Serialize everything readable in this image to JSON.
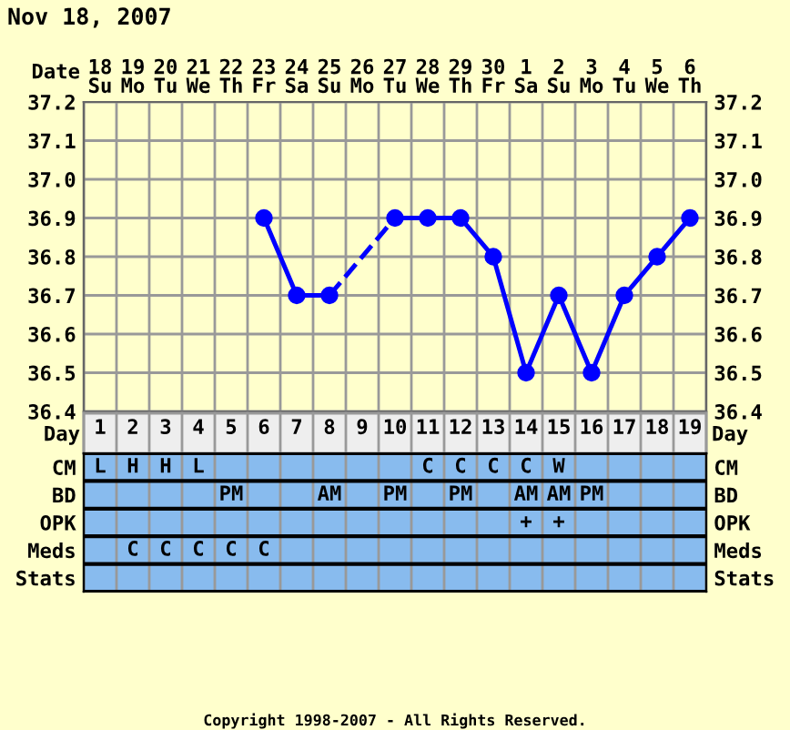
{
  "chart_data": [
    {
      "type": "line",
      "title": "Nov 18, 2007",
      "xlabel": "Date",
      "categories": [
        "18\nSu",
        "19\nMo",
        "20\nTu",
        "21\nWe",
        "22\nTh",
        "23\nFr",
        "24\nSa",
        "25\nSu",
        "26\nMo",
        "27\nTu",
        "28\nWe",
        "29\nTh",
        "30\nFr",
        "1\nSa",
        "2\nSu",
        "3\nMo",
        "4\nTu",
        "5\nWe",
        "6\nTh"
      ],
      "series": [
        {
          "color": "#0000ff",
          "values": [
            null,
            null,
            null,
            null,
            null,
            36.9,
            36.7,
            36.7,
            null,
            36.9,
            36.9,
            36.9,
            36.8,
            36.5,
            36.7,
            36.5,
            36.7,
            36.8,
            36.9
          ]
        }
      ],
      "ylim": [
        36.4,
        37.2
      ],
      "yticks": [
        36.4,
        36.5,
        36.6,
        36.7,
        36.8,
        36.9,
        {
          "value": 37,
          "label": "37.0"
        },
        37.1,
        37.2
      ],
      "y2lim": [
        36.4,
        37.2
      ],
      "y2ticks": [
        36.4,
        36.5,
        36.6,
        36.7,
        36.8,
        36.9,
        {
          "value": 37,
          "label": "37.0"
        },
        37.1,
        37.2
      ],
      "grid": true,
      "marker": "circle",
      "line_style": "solid",
      "legend": false
    },
    {
      "type": "heatmap",
      "xlabel": "Day",
      "categories": [
        "1",
        "2",
        "3",
        "4",
        "5",
        "6",
        "7",
        "8",
        "9",
        "10",
        "11",
        "12",
        "13",
        "14",
        "15",
        "16",
        "17",
        "18",
        "19"
      ],
      "y_categories": [
        "CM",
        "BD",
        "OPK",
        "Meds",
        "Stats"
      ],
      "y2_categories": [
        "CM",
        "BD",
        "OPK",
        "Meds",
        "Stats"
      ],
      "cells": [
        [
          null,
          null,
          null,
          null,
          null,
          null,
          null,
          null,
          null,
          null,
          null,
          null,
          null,
          null,
          null,
          null,
          null,
          null,
          null
        ],
        [
          null,
          null,
          null,
          null,
          null,
          null,
          null,
          null,
          null,
          null,
          null,
          null,
          null,
          null,
          null,
          null,
          null,
          null,
          null
        ],
        [
          null,
          null,
          null,
          null,
          null,
          null,
          null,
          null,
          null,
          null,
          null,
          null,
          null,
          null,
          null,
          null,
          null,
          null,
          null
        ],
        [
          null,
          null,
          null,
          null,
          null,
          null,
          null,
          null,
          null,
          null,
          null,
          null,
          null,
          null,
          null,
          null,
          null,
          null,
          null
        ],
        [
          null,
          null,
          null,
          null,
          null,
          null,
          null,
          null,
          null,
          null,
          null,
          null,
          null,
          null,
          null,
          null,
          null,
          null,
          null
        ]
      ],
      "cell_labels": [
        [
          "L",
          "H",
          "H",
          "L",
          null,
          null,
          null,
          null,
          null,
          null,
          "C",
          "C",
          "C",
          "C",
          "W",
          null,
          null,
          null,
          null
        ],
        [
          null,
          null,
          null,
          null,
          "PM",
          null,
          null,
          "AM",
          null,
          "PM",
          null,
          "PM",
          null,
          "AM",
          "AM",
          "PM",
          null,
          null,
          null
        ],
        [
          null,
          null,
          null,
          null,
          null,
          null,
          null,
          null,
          null,
          null,
          null,
          null,
          null,
          "+",
          "+",
          null,
          null,
          null,
          null
        ],
        [
          null,
          "C",
          "C",
          "C",
          "C",
          "C",
          null,
          null,
          null,
          null,
          null,
          null,
          null,
          null,
          null,
          null,
          null,
          null,
          null
        ],
        [
          null,
          null,
          null,
          null,
          null,
          null,
          null,
          null,
          null,
          null,
          null,
          null,
          null,
          null,
          null,
          null,
          null,
          null,
          null
        ]
      ],
      "annotations": [
        "Copyright 1998-2007 - All Rights Reserved."
      ]
    }
  ]
}
